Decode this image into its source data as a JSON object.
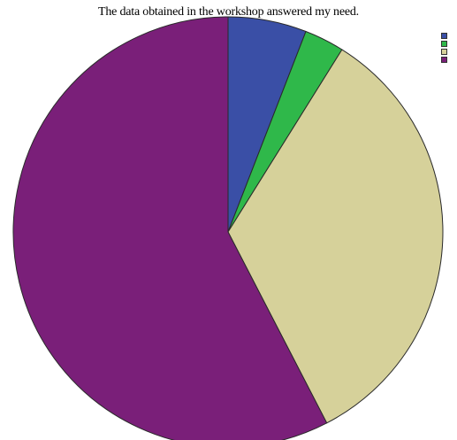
{
  "chart_data": {
    "type": "pie",
    "title": "The data obtained in the workshop answered my need.",
    "categories": [
      "",
      "",
      "",
      ""
    ],
    "values": [
      5.9,
      3.0,
      33.5,
      57.6
    ],
    "colors": [
      "#3a4fa6",
      "#2fb84a",
      "#d6d19a",
      "#7a1f79"
    ],
    "start_angle_deg": 0,
    "direction": "clockwise",
    "legend_position": "top-right",
    "edge_color": "#2a2a2a"
  }
}
